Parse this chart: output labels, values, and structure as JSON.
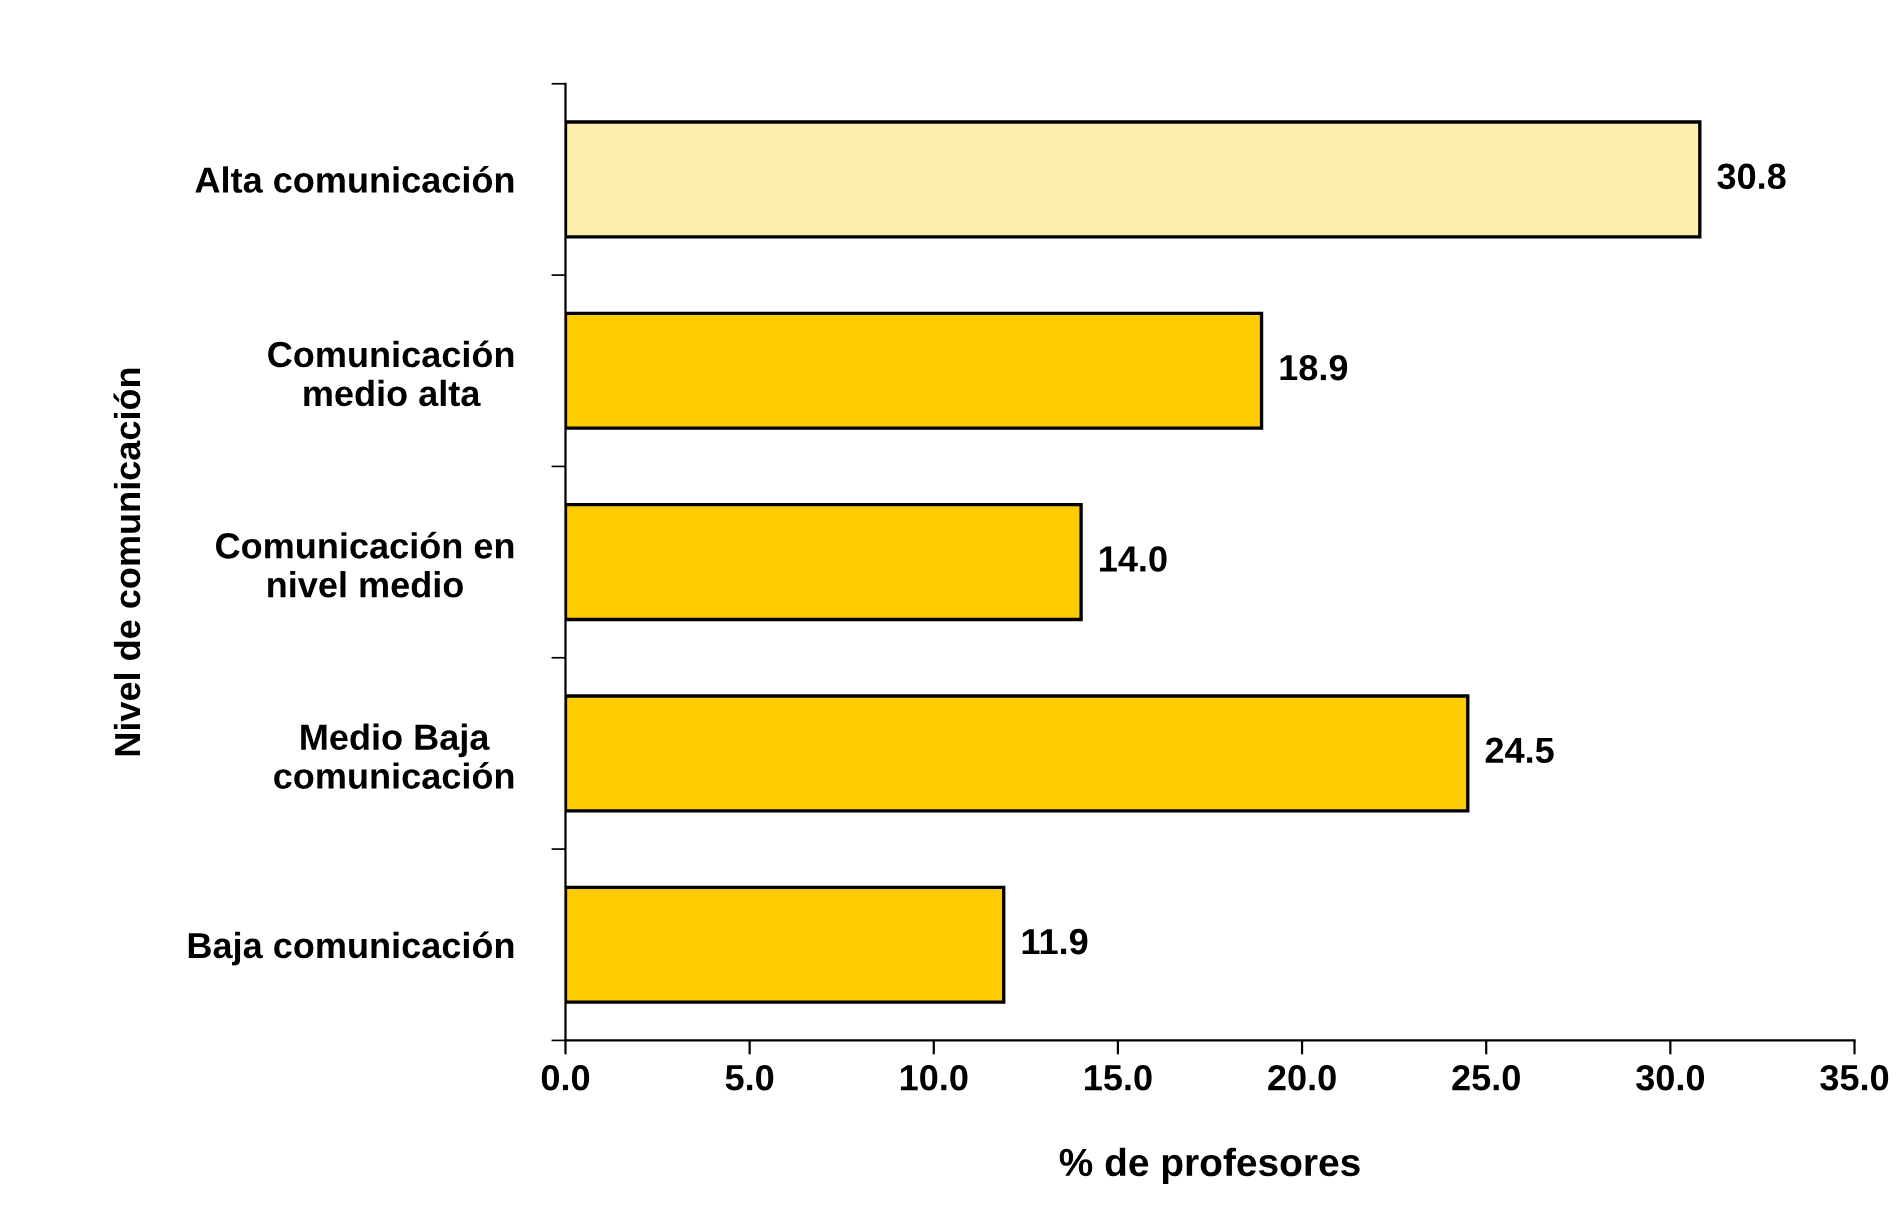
{
  "chart_data": {
    "type": "bar",
    "orientation": "horizontal",
    "xlabel": "% de profesores",
    "ylabel": "Nivel de comunicación",
    "categories": [
      "Alta comunicación",
      "Comunicación\nmedio alta",
      "Comunicación en\nnivel medio",
      "Medio Baja\ncomunicación",
      "Baja comunicación"
    ],
    "values": [
      30.8,
      18.9,
      14.0,
      24.5,
      11.9
    ],
    "value_labels": [
      "30.8",
      "18.9",
      "14.0",
      "24.5",
      "11.9"
    ],
    "colors": [
      "#fdeeb0",
      "#ffcc00",
      "#ffcc00",
      "#ffcc00",
      "#ffcc00"
    ],
    "xlim": [
      0,
      35
    ],
    "xticks": [
      {
        "value": 0,
        "label": "0.0"
      },
      {
        "value": 5,
        "label": "5.0"
      },
      {
        "value": 10,
        "label": "10.0"
      },
      {
        "value": 15,
        "label": "15.0"
      },
      {
        "value": 20,
        "label": "20.0"
      },
      {
        "value": 25,
        "label": "25.0"
      },
      {
        "value": 30,
        "label": "30.0"
      },
      {
        "value": 35,
        "label": "35.0"
      }
    ],
    "grid": false
  }
}
